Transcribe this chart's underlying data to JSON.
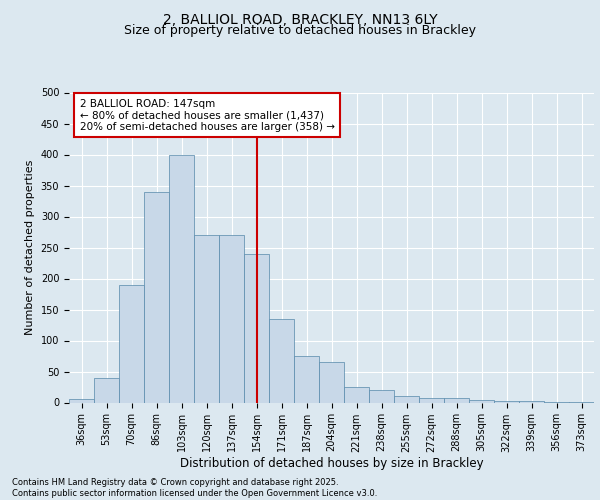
{
  "title1": "2, BALLIOL ROAD, BRACKLEY, NN13 6LY",
  "title2": "Size of property relative to detached houses in Brackley",
  "xlabel": "Distribution of detached houses by size in Brackley",
  "ylabel": "Number of detached properties",
  "bins": [
    "36sqm",
    "53sqm",
    "70sqm",
    "86sqm",
    "103sqm",
    "120sqm",
    "137sqm",
    "154sqm",
    "171sqm",
    "187sqm",
    "204sqm",
    "221sqm",
    "238sqm",
    "255sqm",
    "272sqm",
    "288sqm",
    "305sqm",
    "322sqm",
    "339sqm",
    "356sqm",
    "373sqm"
  ],
  "values": [
    5,
    40,
    190,
    340,
    400,
    270,
    270,
    240,
    135,
    75,
    65,
    25,
    20,
    10,
    8,
    8,
    4,
    2,
    2,
    1,
    1
  ],
  "bar_color": "#c8d8e8",
  "bar_edge_color": "#5588aa",
  "vline_x": 7.0,
  "annotation_text": "2 BALLIOL ROAD: 147sqm\n← 80% of detached houses are smaller (1,437)\n20% of semi-detached houses are larger (358) →",
  "ylim": [
    0,
    500
  ],
  "yticks": [
    0,
    50,
    100,
    150,
    200,
    250,
    300,
    350,
    400,
    450,
    500
  ],
  "footer": "Contains HM Land Registry data © Crown copyright and database right 2025.\nContains public sector information licensed under the Open Government Licence v3.0.",
  "background_color": "#dce8f0",
  "plot_bg_color": "#dce8f0",
  "grid_color": "#ffffff",
  "vline_color": "#cc0000",
  "annotation_box_edgecolor": "#cc0000",
  "annotation_fontsize": 7.5,
  "title_fontsize1": 10,
  "title_fontsize2": 9,
  "tick_fontsize": 7,
  "ylabel_fontsize": 8,
  "xlabel_fontsize": 8.5,
  "footer_fontsize": 6
}
